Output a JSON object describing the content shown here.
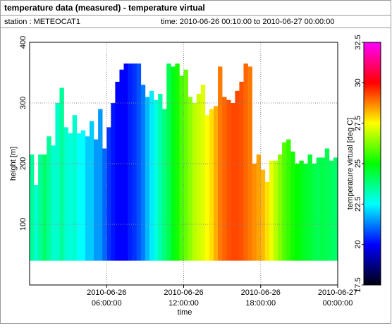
{
  "chart_data": {
    "type": "heatmap",
    "title": "temperature data (measured) - temperature virtual",
    "station": "station : METEOCAT1",
    "period": "time: 2010-06-26 00:10:00 to 2010-06-27 00:00:00",
    "x_label": "time",
    "y_label": "height [m]",
    "colorbar_label": "temperature virtual [deg C]",
    "x": [
      0,
      20,
      40,
      60,
      80,
      100,
      120,
      140,
      160,
      180,
      200,
      220,
      240,
      260,
      280,
      300,
      320,
      340,
      360,
      380,
      400,
      420,
      440,
      460,
      480,
      500,
      520,
      540,
      560,
      580,
      600,
      620,
      640,
      660,
      680,
      700,
      720,
      740,
      760,
      780,
      800,
      820,
      840,
      860,
      880,
      900,
      920,
      940,
      960,
      980,
      1000,
      1020,
      1040,
      1060,
      1080,
      1100,
      1120,
      1140,
      1160,
      1180,
      1200,
      1220,
      1240,
      1260,
      1280,
      1300,
      1320,
      1340,
      1360,
      1380,
      1400,
      1420
    ],
    "bottom": 40,
    "top": [
      215,
      165,
      215,
      215,
      245,
      230,
      300,
      325,
      260,
      250,
      280,
      250,
      255,
      245,
      270,
      240,
      290,
      225,
      260,
      300,
      335,
      355,
      365,
      365,
      365,
      365,
      330,
      310,
      320,
      305,
      315,
      290,
      365,
      360,
      365,
      345,
      355,
      310,
      300,
      315,
      330,
      280,
      290,
      295,
      360,
      310,
      305,
      300,
      320,
      335,
      365,
      360,
      200,
      215,
      190,
      170,
      205,
      205,
      215,
      235,
      240,
      220,
      200,
      205,
      200,
      215,
      200,
      210,
      210,
      225,
      205,
      210
    ],
    "temperature": [
      23.5,
      23,
      23.5,
      24,
      23.5,
      23,
      23,
      23.5,
      23,
      22.8,
      23,
      22.5,
      22.5,
      22,
      22,
      21.5,
      21.5,
      21,
      20.5,
      20.2,
      20,
      20,
      20,
      20.3,
      20.5,
      20.8,
      21.2,
      21.8,
      22.3,
      22.8,
      23.3,
      23.8,
      24.2,
      24.8,
      25.2,
      25.7,
      26,
      26.4,
      26.8,
      27,
      27.2,
      27.5,
      27.8,
      28.3,
      28.8,
      29,
      29.2,
      29.3,
      29.3,
      29.2,
      29,
      28.8,
      28.6,
      28.4,
      28.2,
      27.8,
      27.3,
      26.8,
      26.3,
      25.8,
      25.5,
      25.2,
      25,
      24.8,
      24.6,
      24.5,
      24.3,
      24.2,
      24.3,
      24.2,
      24.1,
      24
    ],
    "xlim": [
      0,
      1440
    ],
    "xticks": [
      {
        "value": 360,
        "label": [
          "2010-06-26",
          "06:00:00"
        ]
      },
      {
        "value": 720,
        "label": [
          "2010-06-26",
          "12:00:00"
        ]
      },
      {
        "value": 1080,
        "label": [
          "2010-06-26",
          "18:00:00"
        ]
      },
      {
        "value": 1440,
        "label": [
          "2010-06-27",
          "00:00:00"
        ]
      }
    ],
    "ylim": [
      0,
      400
    ],
    "yticks": [
      100,
      200,
      300,
      400
    ],
    "clim": [
      17.5,
      32.5
    ],
    "cticks": [
      17.5,
      20,
      22.5,
      25,
      27.5,
      30,
      32.5
    ],
    "colormap": [
      "#000010",
      "#0000ff",
      "#00ffff",
      "#00ff00",
      "#ffff00",
      "#ff0000",
      "#ff00ff"
    ],
    "grid": true
  }
}
